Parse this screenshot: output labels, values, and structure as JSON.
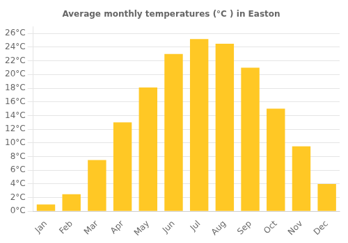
{
  "chart_data": {
    "type": "bar",
    "title": "Average monthly temperatures (°C ) in Easton",
    "categories": [
      "Jan",
      "Feb",
      "Mar",
      "Apr",
      "May",
      "Jun",
      "Jul",
      "Aug",
      "Sep",
      "Oct",
      "Nov",
      "Dec"
    ],
    "values": [
      1.0,
      2.5,
      7.5,
      13.0,
      18.1,
      23.0,
      25.2,
      24.5,
      21.0,
      15.0,
      9.5,
      4.0
    ],
    "color": "#FFC825",
    "ylim": [
      0,
      27
    ],
    "yticks": [
      {
        "value": 0,
        "label": "0°C"
      },
      {
        "value": 2,
        "label": "2°C"
      },
      {
        "value": 4,
        "label": "4°C"
      },
      {
        "value": 6,
        "label": "6°C"
      },
      {
        "value": 8,
        "label": "8°C"
      },
      {
        "value": 10,
        "label": "10°C"
      },
      {
        "value": 12,
        "label": "12°C"
      },
      {
        "value": 14,
        "label": "14°C"
      },
      {
        "value": 16,
        "label": "16°C"
      },
      {
        "value": 18,
        "label": "18°C"
      },
      {
        "value": 20,
        "label": "20°C"
      },
      {
        "value": 22,
        "label": "22°C"
      },
      {
        "value": 24,
        "label": "24°C"
      },
      {
        "value": 26,
        "label": "26°C"
      }
    ],
    "grid": true
  }
}
